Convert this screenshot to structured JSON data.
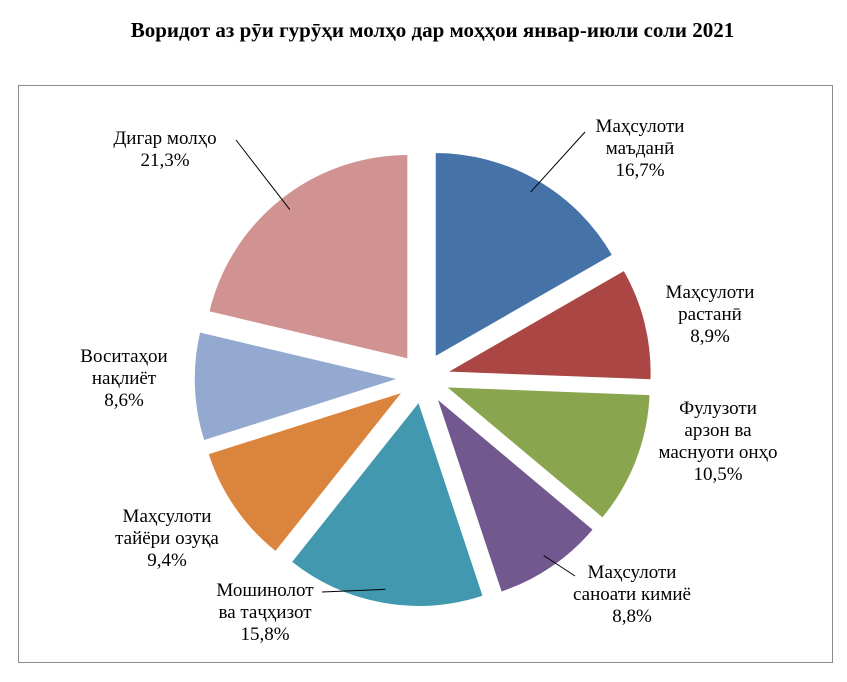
{
  "title": "Воридот аз рӯи гурӯҳи молҳо дар моҳҳои январ-июли соли 2021",
  "chart_data": {
    "type": "pie",
    "title": "Воридот аз рӯи гурӯҳи молҳо дар моҳҳои январ-июли соли 2021",
    "exploded": true,
    "slices": [
      {
        "name_lines": [
          "Маҳсулоти",
          "маъданӣ"
        ],
        "value": 16.7,
        "value_label": "16,7%",
        "color": "#4572a7"
      },
      {
        "name_lines": [
          "Маҳсулоти",
          "растанӣ"
        ],
        "value": 8.9,
        "value_label": "8,9%",
        "color": "#aa4643"
      },
      {
        "name_lines": [
          "Фулузоти",
          "арзон ва",
          "маснуоти онҳо"
        ],
        "value": 10.5,
        "value_label": "10,5%",
        "color": "#89a54e"
      },
      {
        "name_lines": [
          "Маҳсулоти",
          "саноати кимиё"
        ],
        "value": 8.8,
        "value_label": "8,8%",
        "color": "#71588f"
      },
      {
        "name_lines": [
          "Мошинолот",
          "ва таҷҳизот"
        ],
        "value": 15.8,
        "value_label": "15,8%",
        "color": "#4198af"
      },
      {
        "name_lines": [
          "Маҳсулоти",
          "тайёри озуқа"
        ],
        "value": 9.4,
        "value_label": "9,4%",
        "color": "#db843d"
      },
      {
        "name_lines": [
          "Воситаҳои",
          "нақлиёт"
        ],
        "value": 8.6,
        "value_label": "8,6%",
        "color": "#93a9cf"
      },
      {
        "name_lines": [
          "Дигар молҳо"
        ],
        "value": 21.3,
        "value_label": "21,3%",
        "color": "#d19392"
      }
    ]
  }
}
